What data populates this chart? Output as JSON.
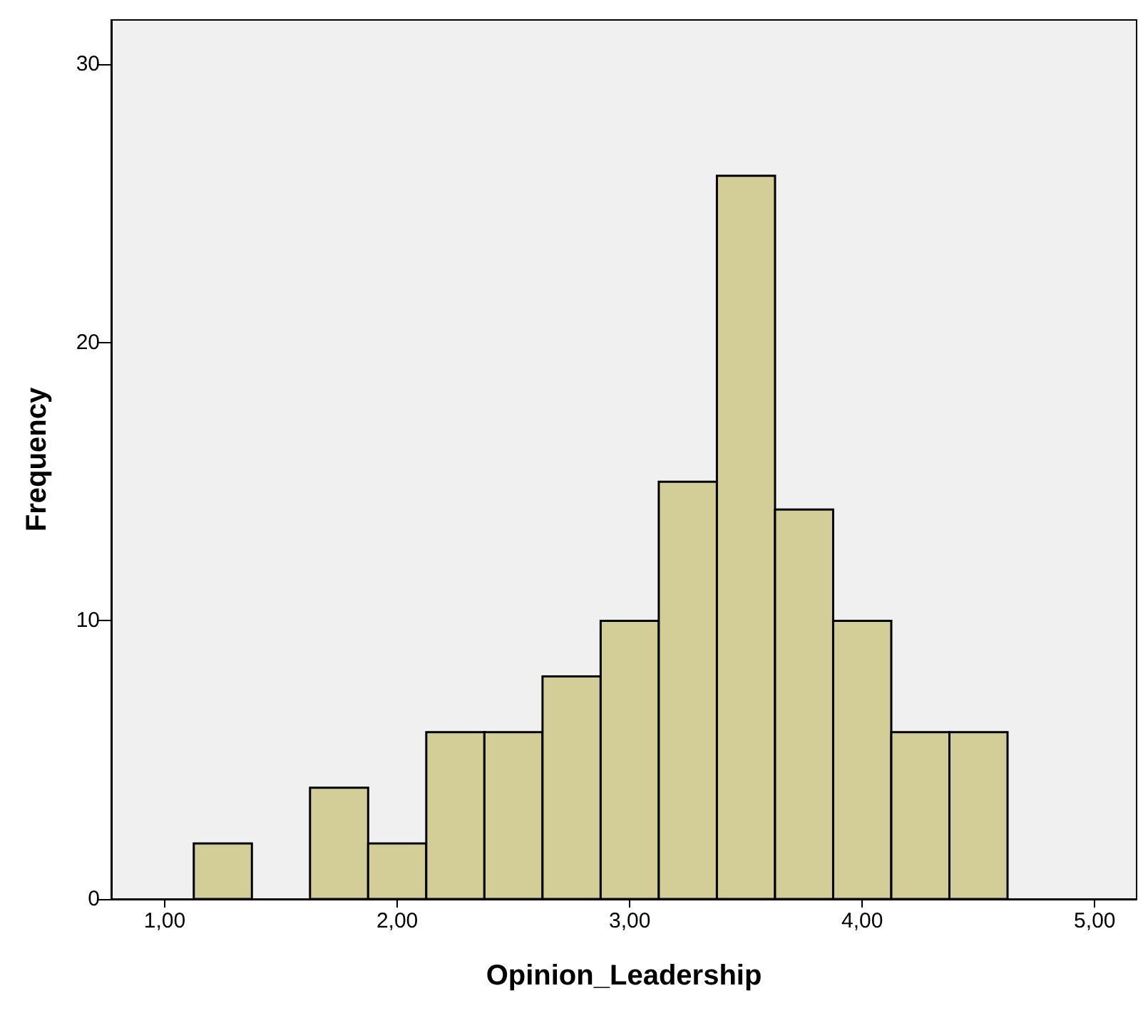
{
  "chart_data": {
    "type": "histogram",
    "xlabel": "Opinion_Leadership",
    "ylabel": "Frequency",
    "bins": [
      1.125,
      1.375,
      1.625,
      1.875,
      2.125,
      2.375,
      2.625,
      2.875,
      3.125,
      3.375,
      3.625,
      3.875,
      4.125,
      4.375,
      4.625
    ],
    "values": [
      2,
      0,
      4,
      2,
      6,
      6,
      8,
      10,
      15,
      26,
      14,
      10,
      6,
      6
    ],
    "color": "#d3ce97",
    "xlim": [
      0.77,
      5.18
    ],
    "ylim": [
      0,
      31.6
    ],
    "xticks": [
      {
        "value": 1,
        "label": "1,00"
      },
      {
        "value": 2,
        "label": "2,00"
      },
      {
        "value": 3,
        "label": "3,00"
      },
      {
        "value": 4,
        "label": "4,00"
      },
      {
        "value": 5,
        "label": "5,00"
      }
    ],
    "yticks": [
      0,
      10,
      20,
      30
    ],
    "grid": false
  }
}
